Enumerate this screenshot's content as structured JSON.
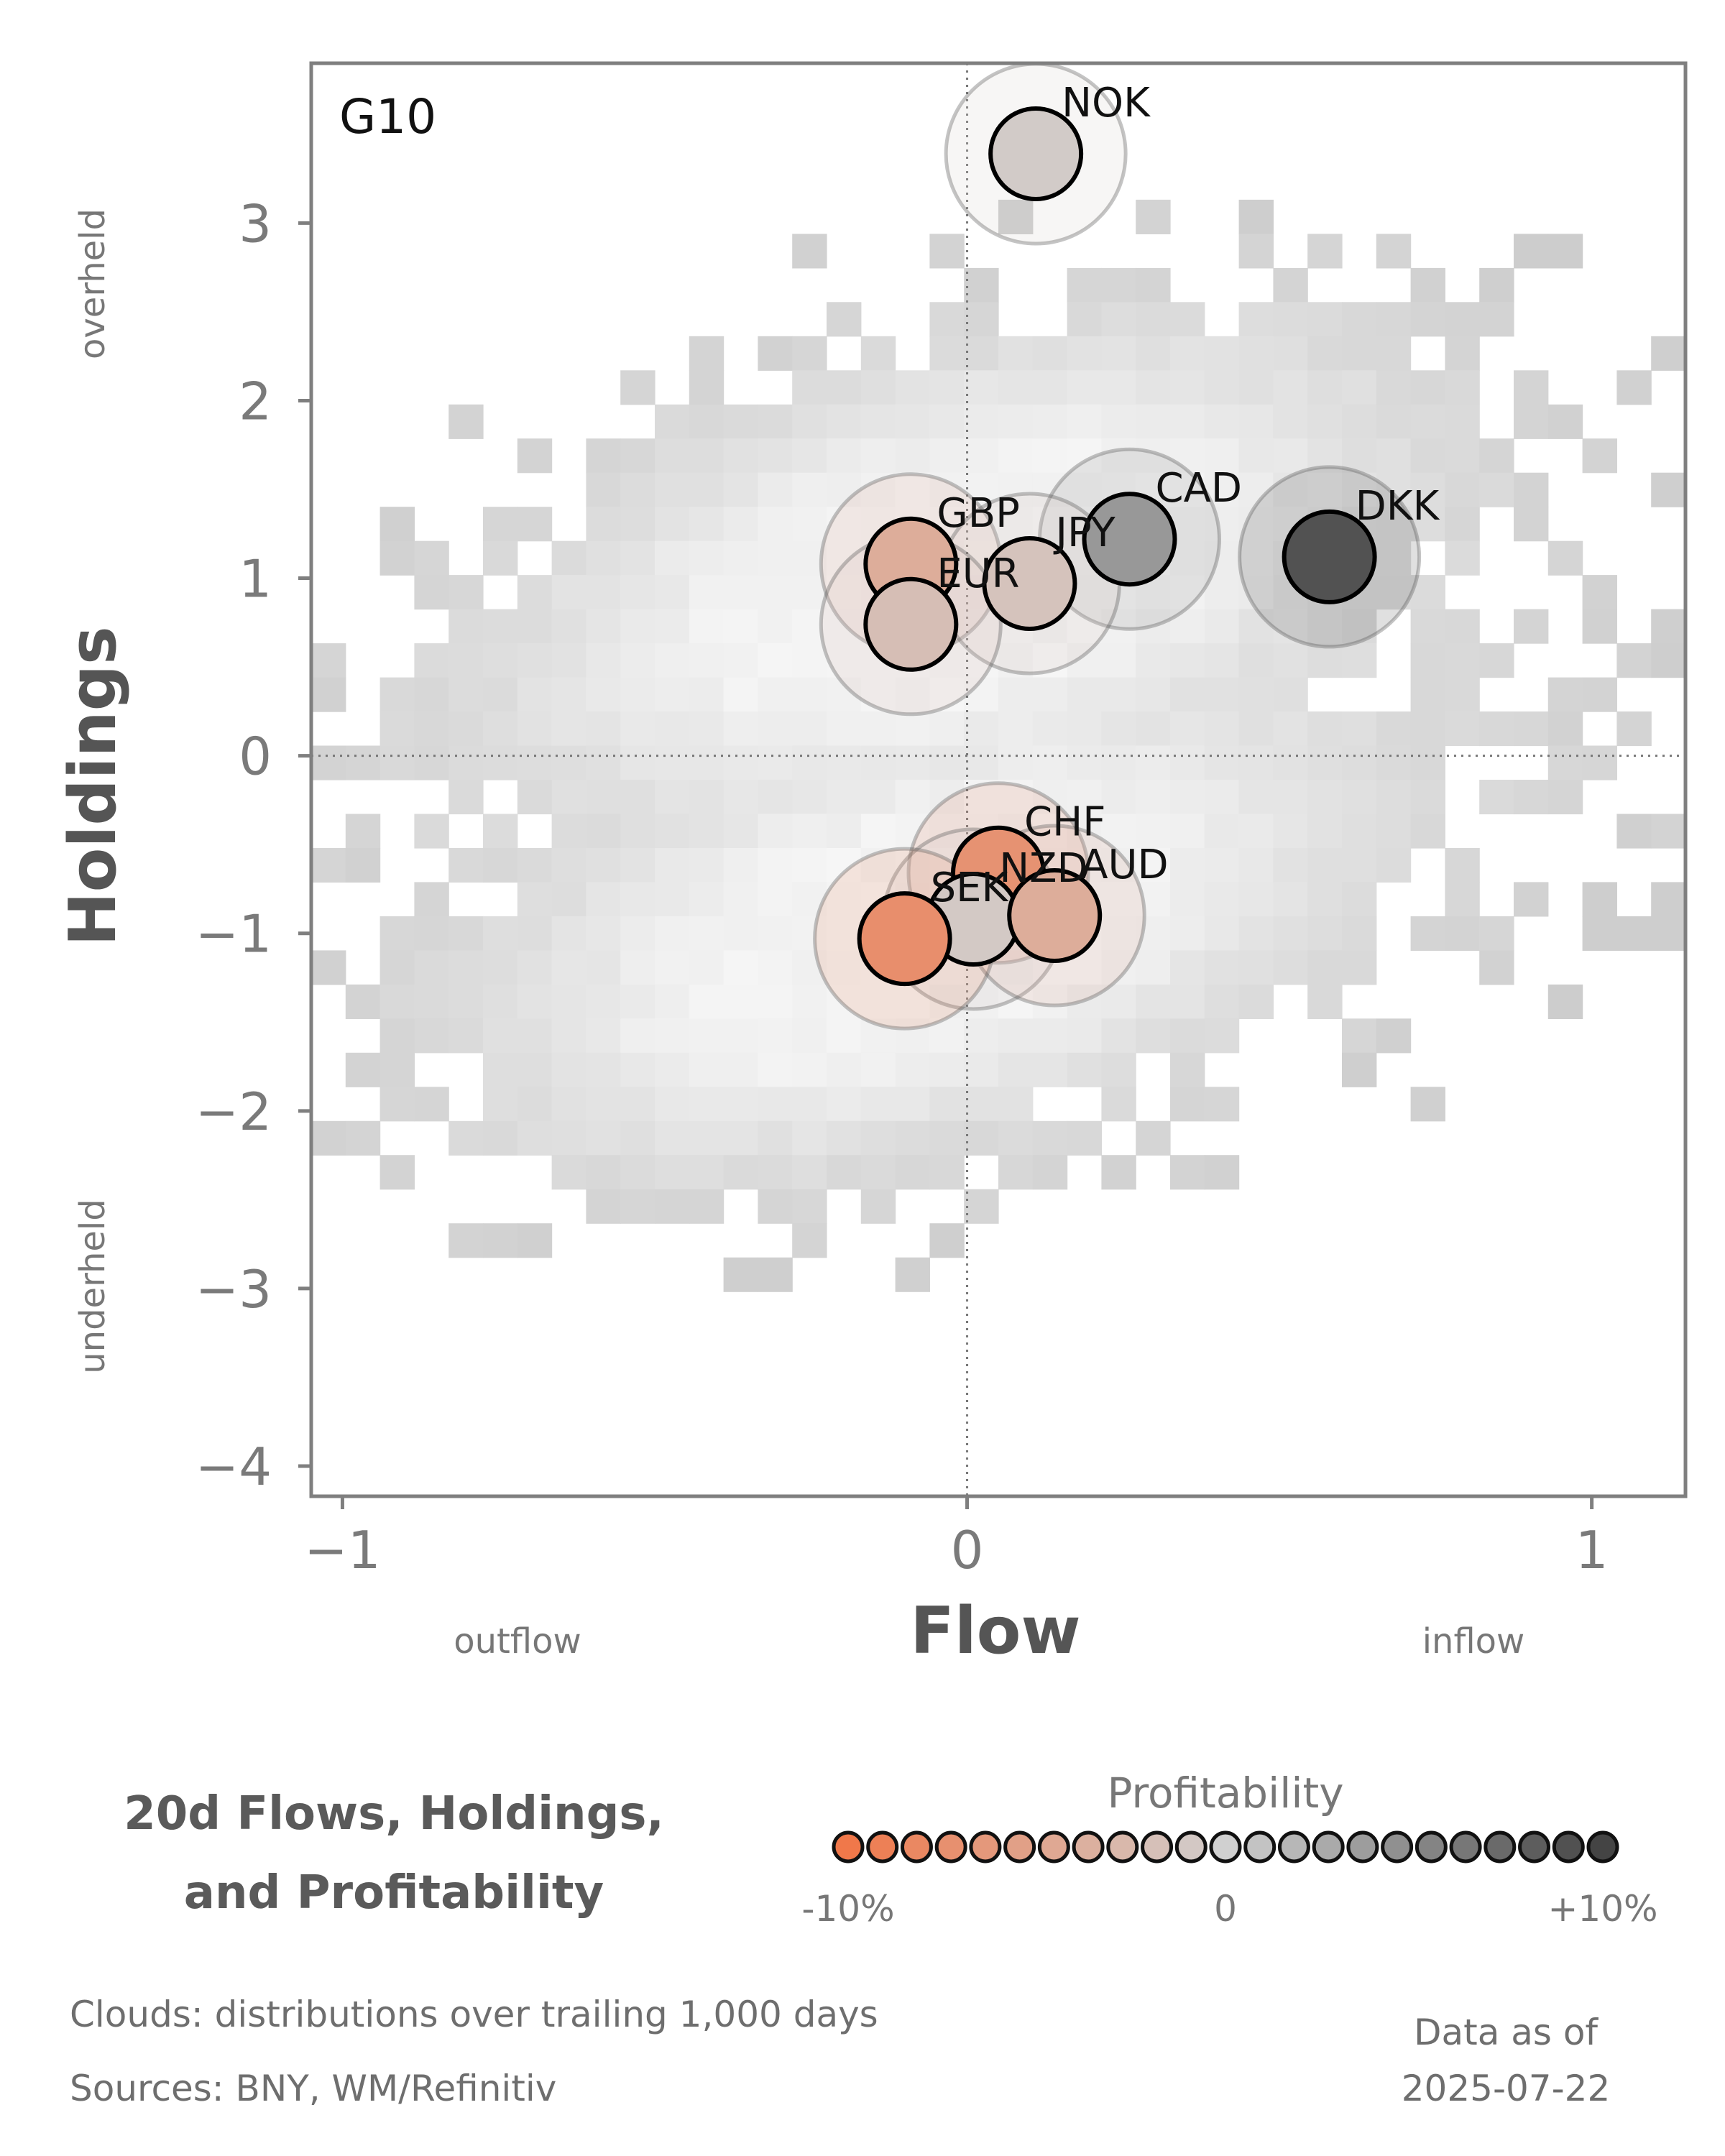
{
  "chart_data": {
    "type": "scatter",
    "panel_label": "G10",
    "xlabel": "Flow",
    "ylabel": "Holdings",
    "xlim": [
      -1.05,
      1.15
    ],
    "ylim": [
      -4.17,
      3.9
    ],
    "x_ticks": [
      -1,
      0,
      1
    ],
    "y_ticks": [
      3,
      2,
      1,
      0,
      -1,
      -2,
      -3,
      -4
    ],
    "x_annotations": {
      "negative": "outflow",
      "positive": "inflow"
    },
    "y_annotations": {
      "positive": "overheld",
      "negative": "underheld"
    },
    "reference_lines": {
      "x": 0,
      "y": 0
    },
    "points": [
      {
        "label": "NOK",
        "flow": 0.11,
        "holdings": 3.39,
        "profitability": -0.6
      },
      {
        "label": "CAD",
        "flow": 0.26,
        "holdings": 1.22,
        "profitability": 4.0
      },
      {
        "label": "DKK",
        "flow": 0.58,
        "holdings": 1.12,
        "profitability": 9.0
      },
      {
        "label": "GBP",
        "flow": -0.09,
        "holdings": 1.08,
        "profitability": -4.0
      },
      {
        "label": "JPY",
        "flow": 0.1,
        "holdings": 0.97,
        "profitability": -1.5
      },
      {
        "label": "EUR",
        "flow": -0.09,
        "holdings": 0.74,
        "profitability": -2.0
      },
      {
        "label": "CHF",
        "flow": 0.05,
        "holdings": -0.66,
        "profitability": -7.0
      },
      {
        "label": "NZD",
        "flow": 0.01,
        "holdings": -0.92,
        "profitability": -0.8
      },
      {
        "label": "AUD",
        "flow": 0.14,
        "holdings": -0.9,
        "profitability": -4.0
      },
      {
        "label": "SEK",
        "flow": -0.1,
        "holdings": -1.03,
        "profitability": -7.5
      }
    ],
    "cloud": {
      "description_note": "Clouds: distributions over trailing 1,000 days"
    },
    "legend": {
      "title": "Profitability",
      "min_label": "-10%",
      "mid_label": "0",
      "max_label": "+10%",
      "min": -10,
      "max": 10,
      "steps": 23
    },
    "title": "20d Flows, Holdings, and Profitability",
    "title_lines": [
      "20d Flows, Holdings,",
      "and Profitability"
    ]
  },
  "footer": {
    "clouds_note": "Clouds:  distributions over trailing 1,000 days",
    "sources": "Sources:  BNY, WM/Refinitiv",
    "asof_label": "Data as of",
    "asof_date": "2025-07-22"
  },
  "colors": {
    "negative": "#f0784a",
    "neutral": "#d0d0d0",
    "positive": "#444444",
    "frame": "#7f7f7f",
    "cloud_base": "#cccccc"
  }
}
